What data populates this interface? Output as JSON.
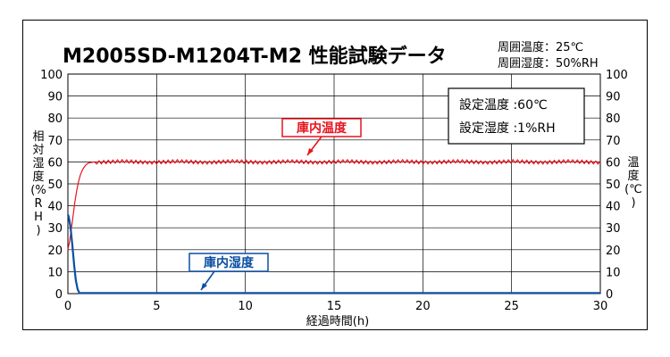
{
  "chart_data": {
    "type": "line",
    "title": "M2005SD-M1204T-M2 性能試験データ",
    "ambient": {
      "temp": "周囲温度：25℃",
      "humidity": "周囲湿度：50%RH"
    },
    "settings": {
      "temp": "設定温度 :60℃",
      "humidity": "設定湿度 :1%RH"
    },
    "xlabel": "経過時間(h)",
    "ylabel_left": [
      "相",
      "対",
      "湿",
      "度",
      "(%",
      "R",
      "H",
      ")"
    ],
    "ylabel_right": [
      "温",
      "度",
      "(℃",
      ")"
    ],
    "xlim": [
      0,
      30
    ],
    "ylim": [
      0,
      100
    ],
    "xticks": [
      0,
      5,
      10,
      15,
      20,
      25,
      30
    ],
    "yticks": [
      0,
      10,
      20,
      30,
      40,
      50,
      60,
      70,
      80,
      90,
      100
    ],
    "grid": true,
    "series": [
      {
        "name": "庫内温度",
        "axis": "right",
        "color": "#e8141e",
        "x": [
          0,
          0.1,
          0.2,
          0.3,
          0.4,
          0.5,
          0.6,
          0.7,
          0.8,
          0.9,
          1.0,
          1.1,
          1.2,
          1.35,
          1.5
        ],
        "y": [
          20,
          24,
          30,
          36,
          42,
          47,
          51,
          54,
          56,
          57.5,
          58.5,
          59.2,
          59.6,
          59.8,
          60
        ],
        "steady_value": 60,
        "steady_ripple": 1
      },
      {
        "name": "庫内湿度",
        "axis": "left",
        "color": "#0b4fa3",
        "x": [
          0,
          0.05,
          0.15,
          0.25,
          0.35,
          0.45,
          0.55,
          0.65,
          30
        ],
        "y": [
          36,
          35,
          30,
          22,
          13,
          6,
          2,
          0.3,
          0.3
        ]
      }
    ]
  }
}
